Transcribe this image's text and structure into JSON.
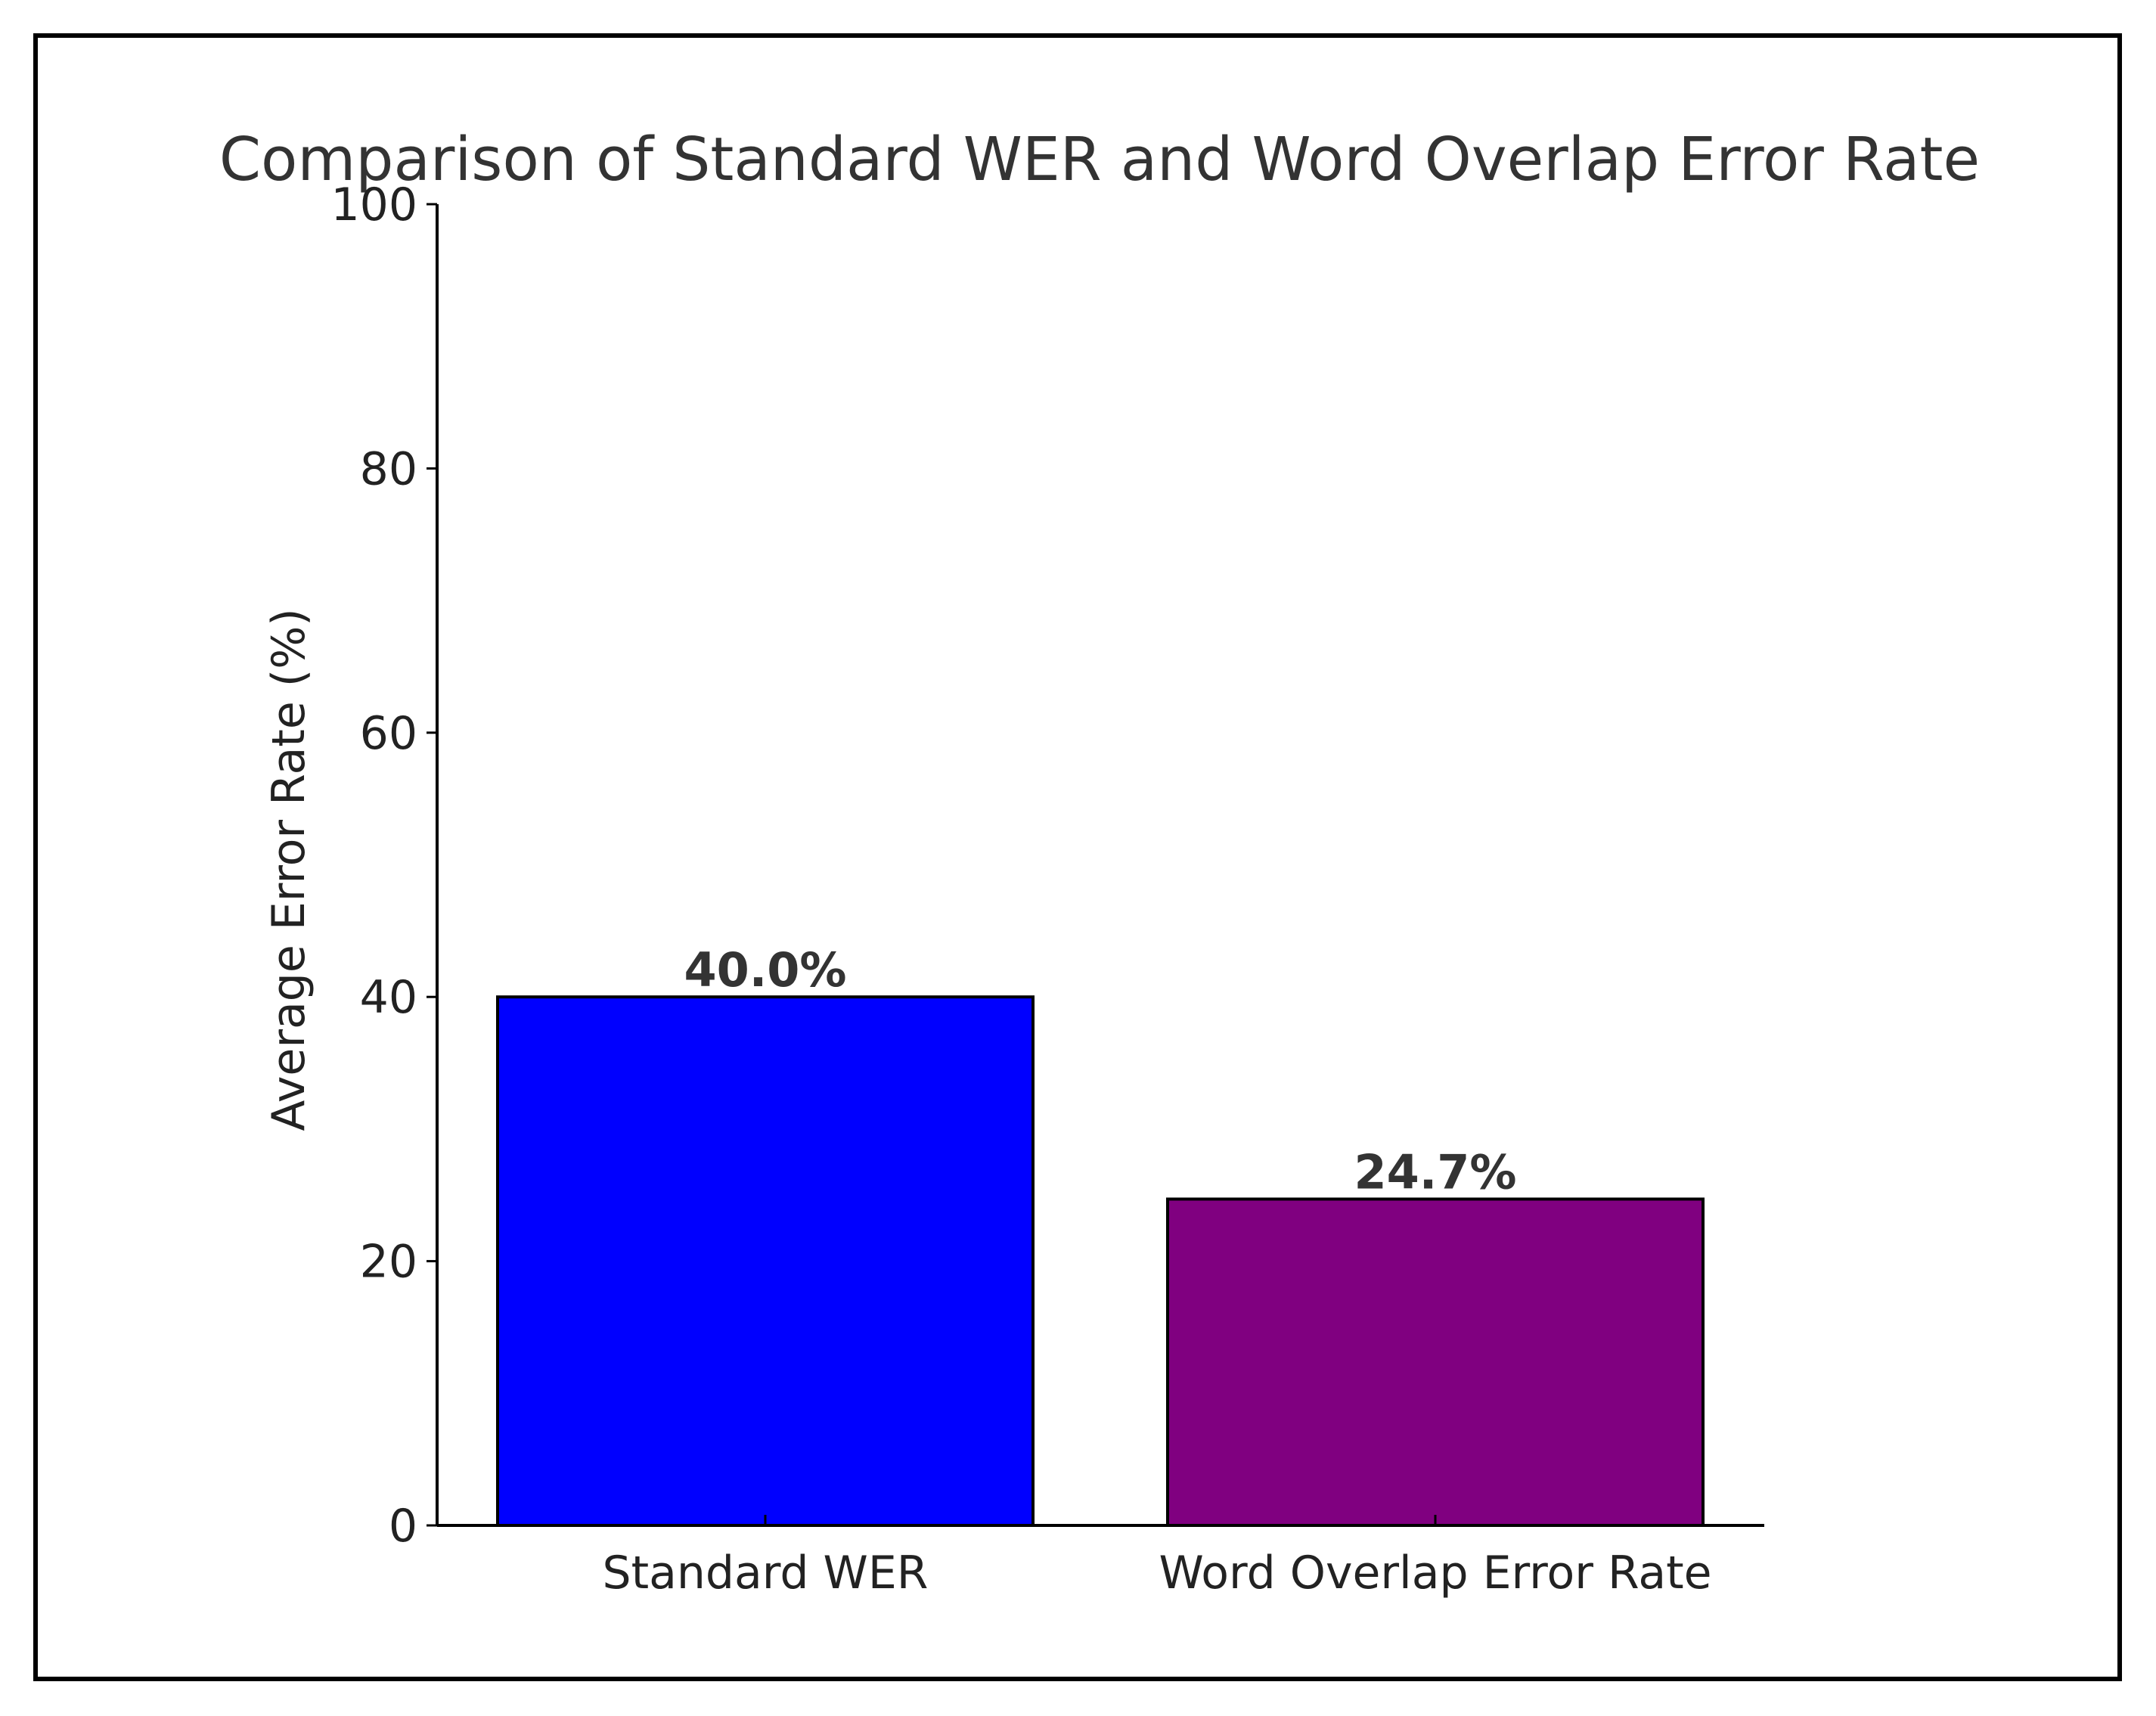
{
  "chart_data": {
    "type": "bar",
    "title": "Comparison of Standard WER and Word Overlap Error Rate",
    "xlabel": "",
    "ylabel": "Average Error Rate (%)",
    "categories": [
      "Standard WER",
      "Word Overlap Error Rate"
    ],
    "values": [
      40.0,
      24.7
    ],
    "data_labels": [
      "40.0%",
      "24.7%"
    ],
    "colors": [
      "#0000ff",
      "#800080"
    ],
    "ylim": [
      0,
      100
    ],
    "yticks": [
      0,
      20,
      40,
      60,
      80,
      100
    ],
    "grid": false,
    "legend": "none"
  }
}
